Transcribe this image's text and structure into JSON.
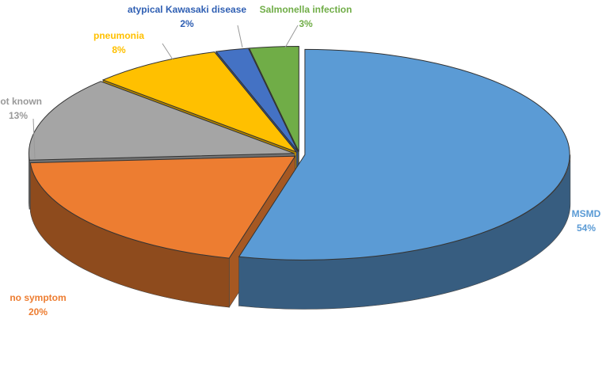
{
  "chart_data": {
    "type": "pie3d",
    "categories": [
      "MSMD",
      "no symptom",
      "not known",
      "pneumonia",
      "atypical Kawasaki disease",
      "Salmonella  infection"
    ],
    "values": [
      54,
      20,
      13,
      8,
      2,
      3
    ],
    "value_labels": [
      "54%",
      "20%",
      "13%",
      "8%",
      "2%",
      "3%"
    ],
    "colors": [
      "#5b9bd5",
      "#ed7d31",
      "#a5a5a5",
      "#ffc000",
      "#4472c4",
      "#70ad47"
    ]
  }
}
